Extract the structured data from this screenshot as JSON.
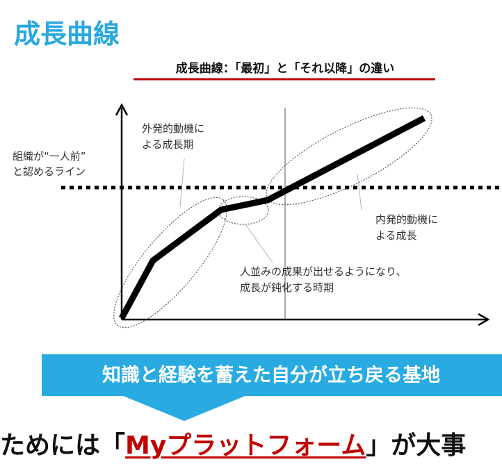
{
  "title": "成長曲線",
  "subtitle": "成長曲線：「最初」と「それ以降」の違い",
  "annotations": {
    "line_label": [
      "組織が“一人前”",
      "と認めるライン"
    ],
    "early_growth": [
      "外発的動機に",
      "よる成長期"
    ],
    "intrinsic_growth": [
      "内発的動機に",
      "よる成長"
    ],
    "plateau": [
      "人並みの成果が出せるようになり、",
      "成長が鈍化する時期"
    ]
  },
  "banner": "知識と経験を蓄えた自分が立ち戻る基地",
  "conclusion": {
    "before": "ためには「",
    "highlight": "Myプラットフォーム",
    "after": "」が大事"
  }
}
